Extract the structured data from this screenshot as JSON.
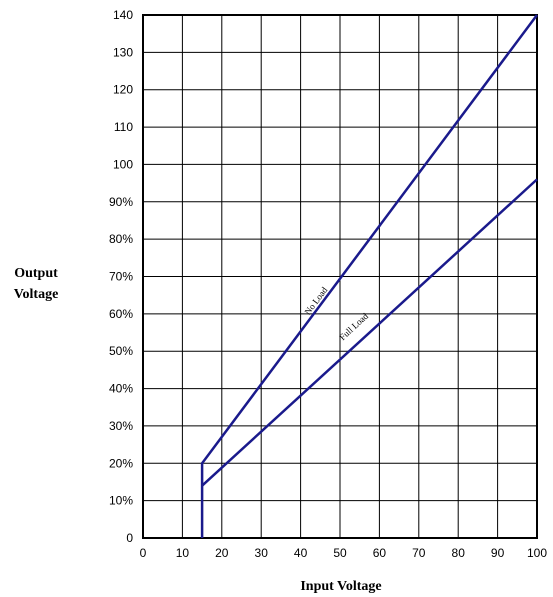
{
  "chart_data": {
    "type": "line",
    "xlabel": "Input Voltage",
    "ylabel_lines": [
      "Output",
      "Voltage"
    ],
    "x_tick_labels": [
      "0",
      "10",
      "20",
      "30",
      "40",
      "50",
      "60",
      "70",
      "80",
      "90",
      "100"
    ],
    "y_tick_labels": [
      "0",
      "10%",
      "20%",
      "30%",
      "40%",
      "50%",
      "60%",
      "70%",
      "80%",
      "90%",
      "100",
      "110",
      "120",
      "130",
      "140"
    ],
    "xlim": [
      0,
      100
    ],
    "ylim": [
      0,
      140
    ],
    "grid": true,
    "series": [
      {
        "name": "No Load",
        "color": "#1a1a8c",
        "points": [
          [
            15,
            0
          ],
          [
            15,
            20
          ],
          [
            100,
            140
          ]
        ]
      },
      {
        "name": "Full Load",
        "color": "#1a1a8c",
        "points": [
          [
            15,
            14
          ],
          [
            100,
            96
          ]
        ]
      }
    ],
    "annotations": [
      {
        "text": "No Load",
        "x": 44.5,
        "y": 63,
        "series": 0
      },
      {
        "text": "Full Load",
        "x": 54,
        "y": 56,
        "series": 1
      }
    ]
  }
}
